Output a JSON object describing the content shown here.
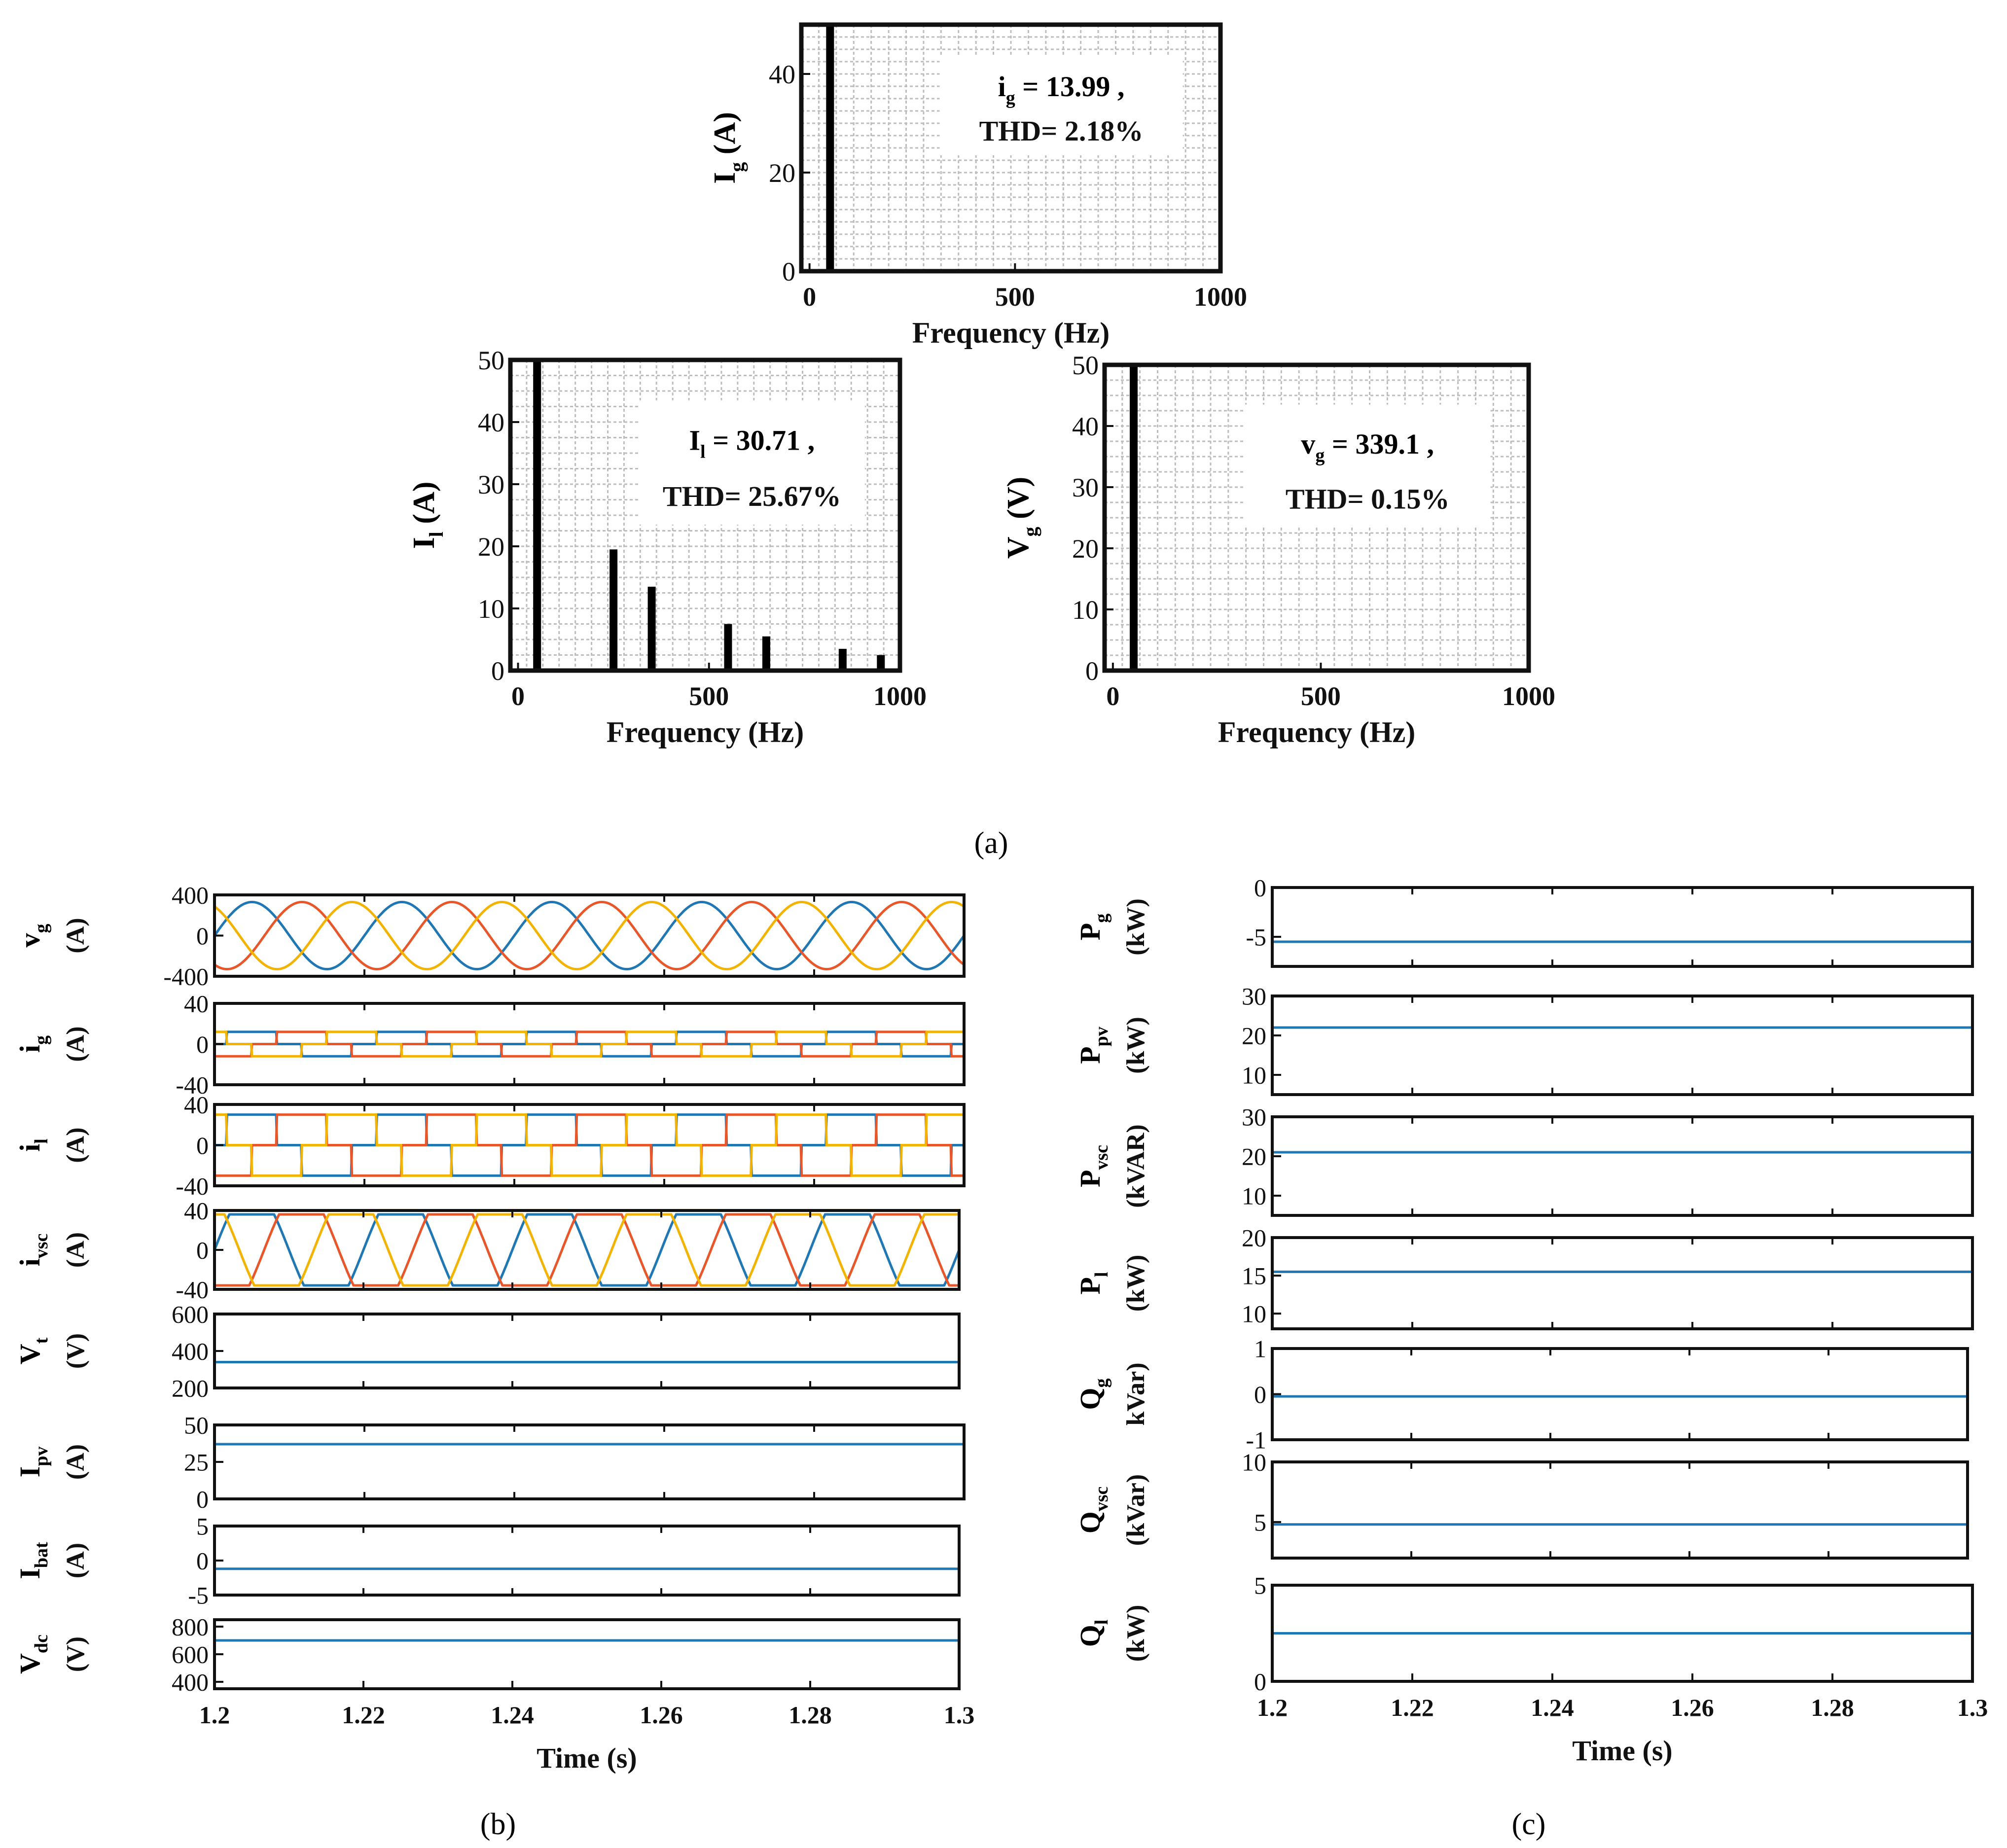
{
  "figure_labels": {
    "a": "(a)",
    "b": "(b)",
    "c": "(c)"
  },
  "colors": {
    "blue": "#1f77b4",
    "orange": "#e8572a",
    "yellow": "#f2b400",
    "grid": "#bdbdbd",
    "frame": "#111111"
  },
  "chart_data": [
    {
      "id": "a1",
      "type": "bar",
      "title": "",
      "xlabel": "Frequency (Hz)",
      "ylabel_main": "I",
      "ylabel_sub": "g",
      "ylabel_unit": "(A)",
      "xlim": [
        -20,
        1000
      ],
      "ylim": [
        0,
        50
      ],
      "xticks": [
        0,
        500,
        1000
      ],
      "xtick_labels": [
        "0",
        "500",
        "1000"
      ],
      "yticks": [
        0,
        20,
        40
      ],
      "ytick_labels": [
        "0",
        "20",
        "40"
      ],
      "x": [
        50
      ],
      "values": [
        50
      ],
      "annotation": [
        "i = 13.99 ,",
        "THD= 2.18%"
      ],
      "annotation_sub": "g"
    },
    {
      "id": "a2",
      "type": "bar",
      "title": "",
      "xlabel": "Frequency (Hz)",
      "ylabel_main": "I",
      "ylabel_sub": "l",
      "ylabel_unit": "(A)",
      "xlim": [
        -20,
        1000
      ],
      "ylim": [
        0,
        50
      ],
      "xticks": [
        0,
        500,
        1000
      ],
      "xtick_labels": [
        "0",
        "500",
        "1000"
      ],
      "yticks": [
        0,
        10,
        20,
        30,
        40,
        50
      ],
      "ytick_labels": [
        "0",
        "10",
        "20",
        "30",
        "40",
        "50"
      ],
      "x": [
        50,
        250,
        350,
        550,
        650,
        850,
        950
      ],
      "values": [
        50,
        19.5,
        13.5,
        7.5,
        5.5,
        3.5,
        2.5
      ],
      "annotation": [
        "I = 30.71 ,",
        "THD= 25.67%"
      ],
      "annotation_sub": "l"
    },
    {
      "id": "a3",
      "type": "bar",
      "title": "",
      "xlabel": "Frequency (Hz)",
      "ylabel_main": "V",
      "ylabel_sub": "g",
      "ylabel_unit": "(V)",
      "xlim": [
        -20,
        1000
      ],
      "ylim": [
        0,
        50
      ],
      "xticks": [
        0,
        500,
        1000
      ],
      "xtick_labels": [
        "0",
        "500",
        "1000"
      ],
      "yticks": [
        0,
        10,
        20,
        30,
        40,
        50
      ],
      "ytick_labels": [
        "0",
        "10",
        "20",
        "30",
        "40",
        "50"
      ],
      "x": [
        50
      ],
      "values": [
        50
      ],
      "annotation": [
        "v = 339.1 ,",
        "THD= 0.15%"
      ],
      "annotation_sub": "g"
    },
    {
      "id": "b1",
      "type": "line",
      "xlim": [
        1.2,
        1.3
      ],
      "ylim": [
        -400,
        400
      ],
      "yticks": [
        -400,
        0,
        400
      ],
      "ytick_labels": [
        "-400",
        "0",
        "400"
      ],
      "ylabel_main": "v",
      "ylabel_sub": "g",
      "ylabel_unit": "(A)",
      "waveform": "sine3",
      "amplitude": 330,
      "frequency_hz": 50
    },
    {
      "id": "b2",
      "type": "line",
      "xlim": [
        1.2,
        1.3
      ],
      "ylim": [
        -40,
        40
      ],
      "yticks": [
        -40,
        0,
        40
      ],
      "ytick_labels": [
        "-40",
        "0",
        "40"
      ],
      "ylabel_main": "i",
      "ylabel_sub": "g",
      "ylabel_unit": "(A)",
      "waveform": "square3",
      "amplitude": 12,
      "frequency_hz": 50
    },
    {
      "id": "b3",
      "type": "line",
      "xlim": [
        1.2,
        1.3
      ],
      "ylim": [
        -40,
        40
      ],
      "yticks": [
        -40,
        0,
        40
      ],
      "ytick_labels": [
        "-40",
        "0",
        "40"
      ],
      "ylabel_main": "i",
      "ylabel_sub": "l",
      "ylabel_unit": "(A)",
      "waveform": "square3",
      "amplitude": 30,
      "frequency_hz": 50
    },
    {
      "id": "b4",
      "type": "line",
      "xlim": [
        1.2,
        1.3
      ],
      "ylim": [
        -40,
        40
      ],
      "yticks": [
        -40,
        0,
        40
      ],
      "ytick_labels": [
        "-40",
        "0",
        "40"
      ],
      "ylabel_main": "i",
      "ylabel_sub": "vsc",
      "ylabel_unit": "(A)",
      "waveform": "trap3",
      "amplitude": 36,
      "frequency_hz": 50
    },
    {
      "id": "b5",
      "type": "line",
      "xlim": [
        1.2,
        1.3
      ],
      "ylim": [
        200,
        600
      ],
      "yticks": [
        200,
        400,
        600
      ],
      "ytick_labels": [
        "200",
        "400",
        "600"
      ],
      "ylabel_main": "V",
      "ylabel_sub": "t",
      "ylabel_unit": "(V)",
      "waveform": "flat",
      "level": 340
    },
    {
      "id": "b6",
      "type": "line",
      "xlim": [
        1.2,
        1.3
      ],
      "ylim": [
        0,
        50
      ],
      "yticks": [
        0,
        25,
        50
      ],
      "ytick_labels": [
        "0",
        "25",
        "50"
      ],
      "ylabel_main": "I",
      "ylabel_sub": "pv",
      "ylabel_unit": "(A)",
      "waveform": "flat",
      "level": 37
    },
    {
      "id": "b7",
      "type": "line",
      "xlim": [
        1.2,
        1.3
      ],
      "ylim": [
        -5,
        5
      ],
      "yticks": [
        -5,
        0,
        5
      ],
      "ytick_labels": [
        "-5",
        "0",
        "5"
      ],
      "ylabel_main": "I",
      "ylabel_sub": "bat",
      "ylabel_unit": "(A)",
      "waveform": "flat",
      "level": -1.2
    },
    {
      "id": "b8",
      "type": "line",
      "xlim": [
        1.2,
        1.3
      ],
      "ylim": [
        350,
        850
      ],
      "yticks": [
        400,
        600,
        800
      ],
      "ytick_labels": [
        "400",
        "600",
        "800"
      ],
      "ylabel_main": "V",
      "ylabel_sub": "dc",
      "ylabel_unit": "(V)",
      "waveform": "flat",
      "level": 700,
      "xticks": [
        1.2,
        1.22,
        1.24,
        1.26,
        1.28,
        1.3
      ],
      "xtick_labels": [
        "1.2",
        "1.22",
        "1.24",
        "1.26",
        "1.28",
        "1.3"
      ],
      "xlabel": "Time (s)"
    },
    {
      "id": "c1",
      "type": "line",
      "xlim": [
        1.2,
        1.3
      ],
      "ylim": [
        -8,
        0
      ],
      "yticks": [
        -5,
        0
      ],
      "ytick_labels": [
        "-5",
        "0"
      ],
      "ylabel_main": "P",
      "ylabel_sub": "g",
      "ylabel_unit": "(kW)",
      "waveform": "flat",
      "level": -5.5
    },
    {
      "id": "c2",
      "type": "line",
      "xlim": [
        1.2,
        1.3
      ],
      "ylim": [
        5,
        30
      ],
      "yticks": [
        10,
        20,
        30
      ],
      "ytick_labels": [
        "10",
        "20",
        "30"
      ],
      "ylabel_main": "P",
      "ylabel_sub": "pv",
      "ylabel_unit": "(kW)",
      "waveform": "flat",
      "level": 22
    },
    {
      "id": "c3",
      "type": "line",
      "xlim": [
        1.2,
        1.3
      ],
      "ylim": [
        5,
        30
      ],
      "yticks": [
        10,
        20,
        30
      ],
      "ytick_labels": [
        "10",
        "20",
        "30"
      ],
      "ylabel_main": "P",
      "ylabel_sub": "vsc",
      "ylabel_unit": "(kVAR)",
      "waveform": "flat",
      "level": 21
    },
    {
      "id": "c4",
      "type": "line",
      "xlim": [
        1.2,
        1.3
      ],
      "ylim": [
        8,
        20
      ],
      "yticks": [
        10,
        15,
        20
      ],
      "ytick_labels": [
        "10",
        "15",
        "20"
      ],
      "ylabel_main": "P",
      "ylabel_sub": "l",
      "ylabel_unit": "(kW)",
      "waveform": "flat",
      "level": 15.5
    },
    {
      "id": "c5",
      "type": "line",
      "xlim": [
        1.2,
        1.3
      ],
      "ylim": [
        -1,
        1
      ],
      "yticks": [
        -1,
        0,
        1
      ],
      "ytick_labels": [
        "-1",
        "0",
        "1"
      ],
      "ylabel_main": "Q",
      "ylabel_sub": "g",
      "ylabel_unit": "kVar)",
      "waveform": "flat",
      "level": -0.05
    },
    {
      "id": "c6",
      "type": "line",
      "xlim": [
        1.2,
        1.3
      ],
      "ylim": [
        2,
        10
      ],
      "yticks": [
        5,
        10
      ],
      "ytick_labels": [
        "5",
        "10"
      ],
      "ylabel_main": "Q",
      "ylabel_sub": "vsc",
      "ylabel_unit": "(kVar)",
      "waveform": "flat",
      "level": 4.8
    },
    {
      "id": "c7",
      "type": "line",
      "xlim": [
        1.2,
        1.3
      ],
      "ylim": [
        0,
        5
      ],
      "yticks": [
        0,
        5
      ],
      "ytick_labels": [
        "0",
        "5"
      ],
      "ylabel_main": "Q",
      "ylabel_sub": "l",
      "ylabel_unit": "(kW)",
      "waveform": "flat",
      "level": 2.5,
      "xticks": [
        1.2,
        1.22,
        1.24,
        1.26,
        1.28,
        1.3
      ],
      "xtick_labels": [
        "1.2",
        "1.22",
        "1.24",
        "1.26",
        "1.28",
        "1.3"
      ],
      "xlabel": "Time (s)"
    }
  ]
}
